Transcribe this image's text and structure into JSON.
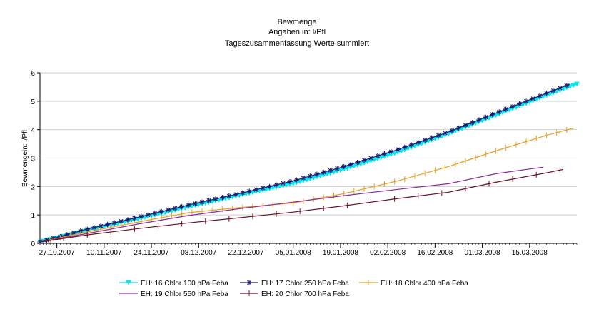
{
  "chart_data": {
    "type": "line",
    "title": "Bewmenge",
    "subtitle": "Angaben in: l/Pfl",
    "subtitle2": "Tageszusammenfassung Werte summiert",
    "ylabel": "Bewmengein: l/Pfl",
    "xlabel": "",
    "ylim": [
      0,
      6
    ],
    "yticks": [
      0,
      1,
      2,
      3,
      4,
      5,
      6
    ],
    "xlim": [
      "2007-10-22",
      "2008-03-29"
    ],
    "xticks": [
      "2007-10-27",
      "2007-11-10",
      "2007-11-24",
      "2007-12-08",
      "2007-12-22",
      "2008-01-05",
      "2008-01-19",
      "2008-02-02",
      "2008-02-16",
      "2008-03-01",
      "2008-03-15"
    ],
    "xtick_labels": [
      "27.10.2007",
      "10.11.2007",
      "24.11.2007",
      "08.12.2007",
      "22.12.2007",
      "05.01.2008",
      "19.01.2008",
      "02.02.2008",
      "16.02.2008",
      "01.03.2008",
      "15.03.2008"
    ],
    "grid": true,
    "legend_position": "bottom",
    "series": [
      {
        "name": "EH: 16 Chlor 100 hPa Feba",
        "color": "#00e8f0",
        "marker": "triangle-down",
        "marker_interval_days": 1,
        "start": "2007-10-22",
        "end": "2008-03-29",
        "x": [
          "2007-10-22",
          "2007-11-05",
          "2007-11-20",
          "2007-12-05",
          "2007-12-20",
          "2008-01-05",
          "2008-01-20",
          "2008-02-05",
          "2008-02-20",
          "2008-03-05",
          "2008-03-20",
          "2008-03-29"
        ],
        "values": [
          0.05,
          0.45,
          0.85,
          1.28,
          1.68,
          2.1,
          2.6,
          3.2,
          3.85,
          4.5,
          5.2,
          5.6
        ]
      },
      {
        "name": "EH: 17 Chlor 250 hPa Feba",
        "color": "#1a1a6e",
        "marker": "star",
        "marker_interval_days": 2,
        "start": "2007-10-22",
        "end": "2008-03-27",
        "x": [
          "2007-10-22",
          "2007-11-05",
          "2007-11-20",
          "2007-12-05",
          "2007-12-20",
          "2008-01-05",
          "2008-01-20",
          "2008-02-05",
          "2008-02-20",
          "2008-03-05",
          "2008-03-20",
          "2008-03-27"
        ],
        "values": [
          0.05,
          0.5,
          0.92,
          1.35,
          1.75,
          2.2,
          2.7,
          3.3,
          3.92,
          4.58,
          5.28,
          5.6
        ]
      },
      {
        "name": "EH: 18 Chlor 400 hPa Feba",
        "color": "#e8a020",
        "marker": "tick",
        "marker_interval_days": 3,
        "start": "2007-10-22",
        "end": "2008-03-28",
        "x": [
          "2007-10-22",
          "2007-11-05",
          "2007-11-20",
          "2007-12-05",
          "2007-12-20",
          "2008-01-05",
          "2008-01-20",
          "2008-02-05",
          "2008-02-20",
          "2008-03-05",
          "2008-03-20",
          "2008-03-28"
        ],
        "values": [
          0.05,
          0.4,
          0.75,
          1.08,
          1.26,
          1.42,
          1.75,
          2.2,
          2.7,
          3.25,
          3.8,
          4.05
        ]
      },
      {
        "name": "EH: 19 Chlor 550 hPa Feba",
        "color": "#8b2a9a",
        "marker": "none",
        "marker_interval_days": 0,
        "start": "2007-10-22",
        "end": "2008-03-19",
        "x": [
          "2007-10-22",
          "2007-11-05",
          "2007-11-20",
          "2007-12-05",
          "2007-12-20",
          "2008-01-05",
          "2008-01-20",
          "2008-02-05",
          "2008-02-20",
          "2008-03-05",
          "2008-03-19"
        ],
        "values": [
          0.05,
          0.35,
          0.68,
          0.98,
          1.22,
          1.45,
          1.68,
          1.9,
          2.1,
          2.45,
          2.68
        ]
      },
      {
        "name": "EH: 20 Chlor 700 hPa Feba",
        "color": "#6a1020",
        "marker": "tick",
        "marker_interval_days": 7,
        "start": "2007-10-22",
        "end": "2008-03-25",
        "x": [
          "2007-10-22",
          "2007-11-05",
          "2007-11-20",
          "2007-12-05",
          "2007-12-20",
          "2008-01-05",
          "2008-01-20",
          "2008-02-05",
          "2008-02-20",
          "2008-03-05",
          "2008-03-20",
          "2008-03-25"
        ],
        "values": [
          0.05,
          0.3,
          0.52,
          0.72,
          0.9,
          1.1,
          1.32,
          1.58,
          1.8,
          2.15,
          2.48,
          2.6
        ]
      }
    ]
  }
}
